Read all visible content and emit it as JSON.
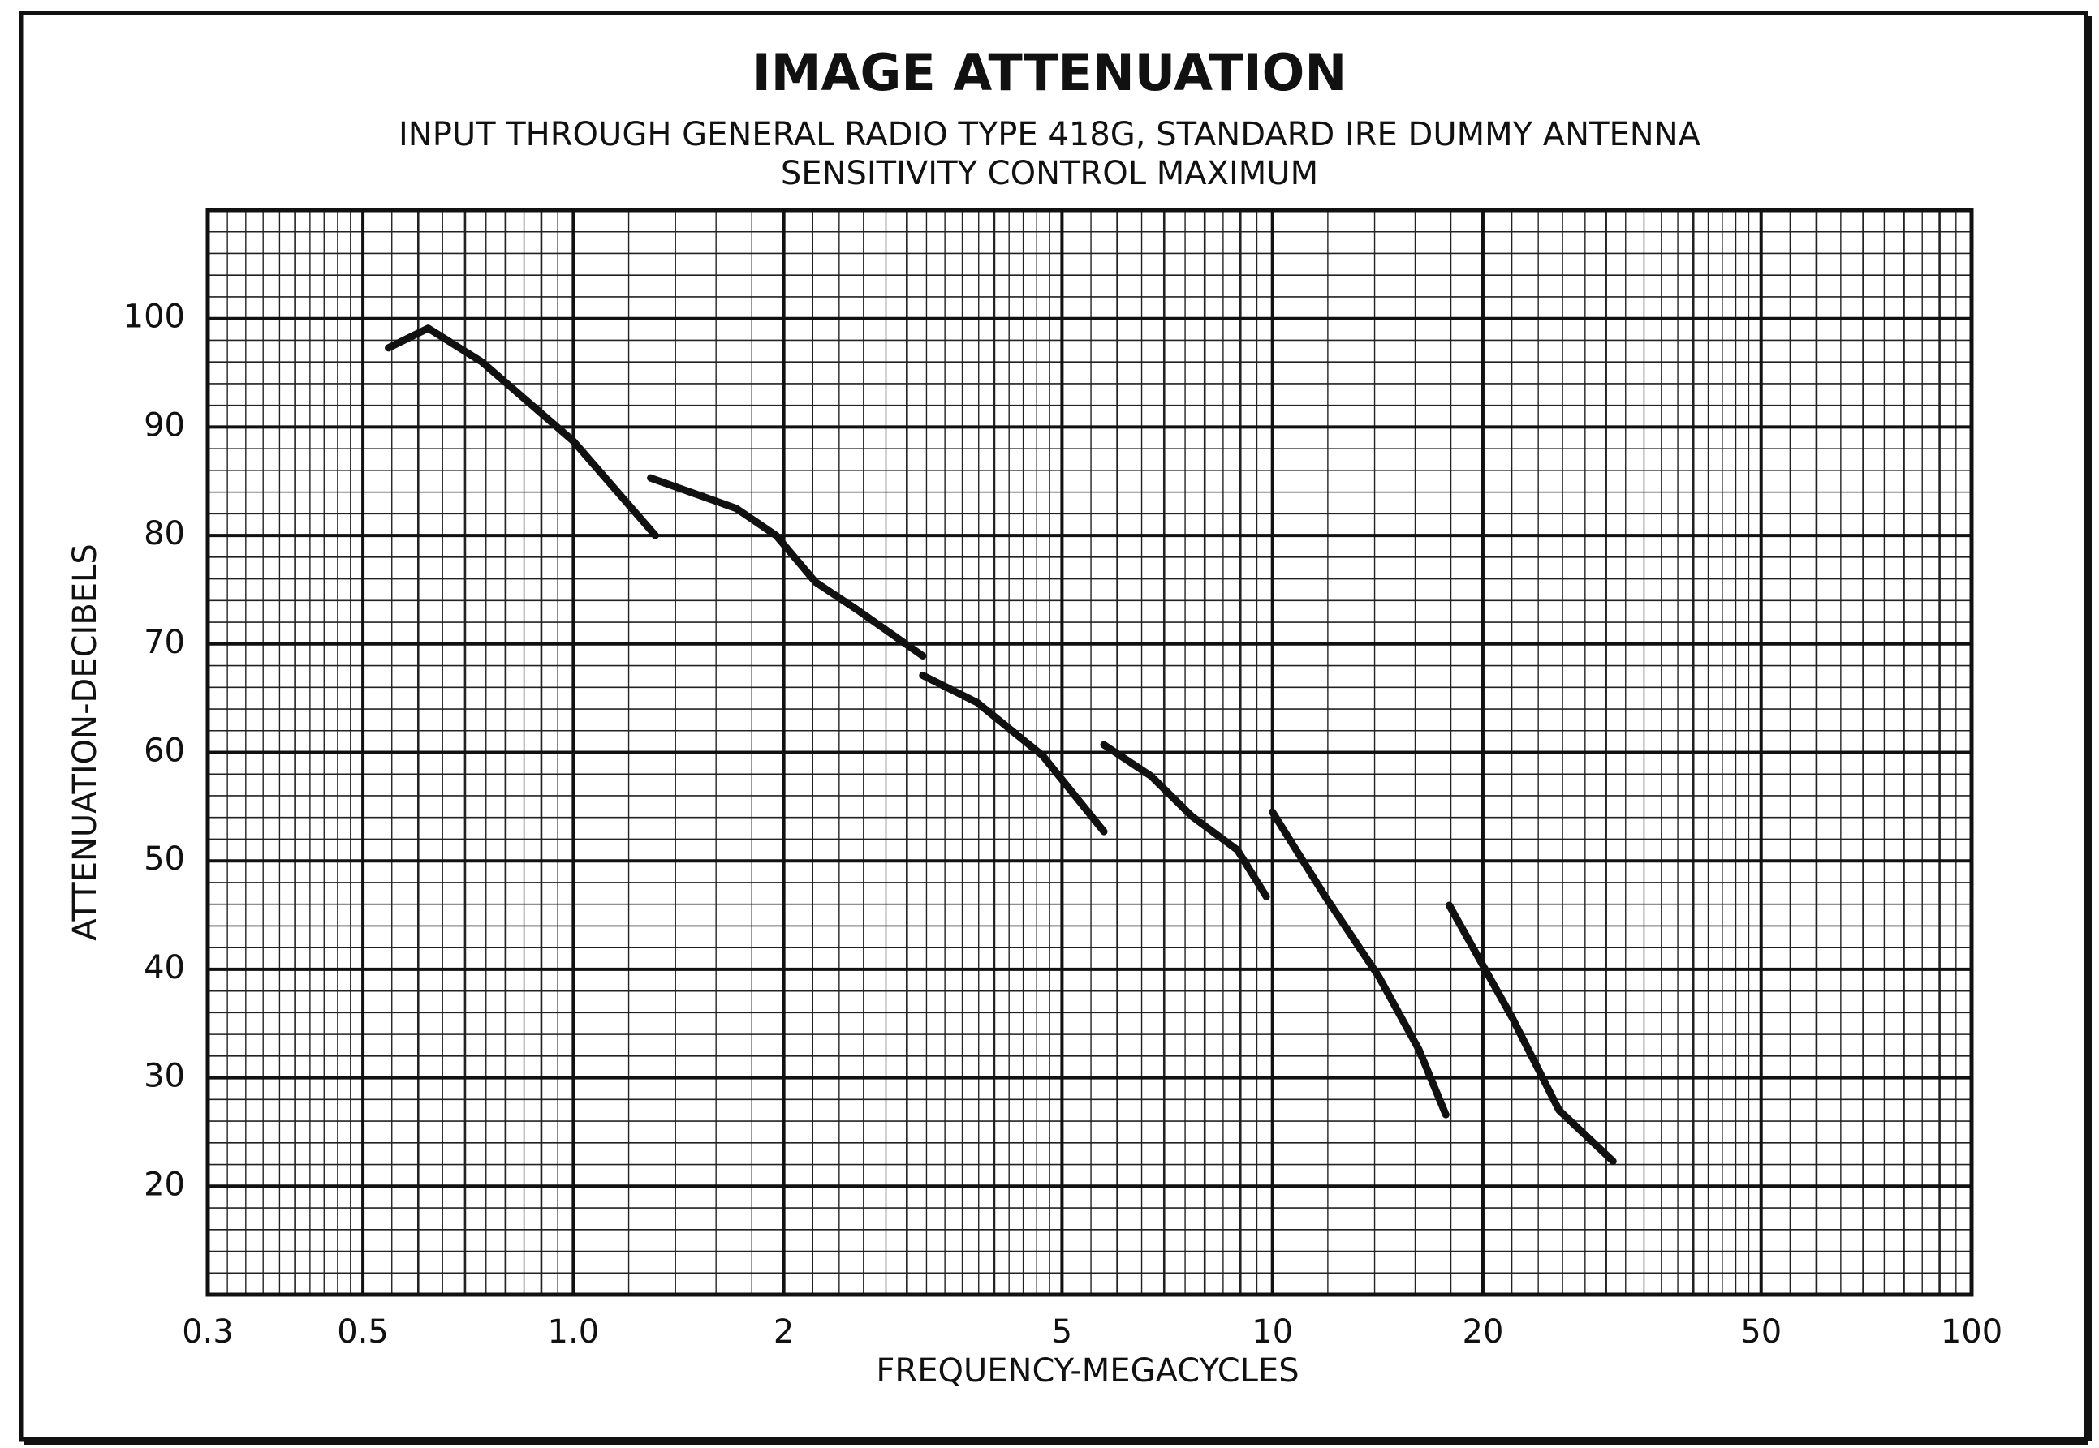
{
  "chart_data": {
    "type": "line",
    "title": "IMAGE ATTENUATION",
    "subtitle": [
      "INPUT THROUGH GENERAL RADIO TYPE 418G, STANDARD IRE DUMMY ANTENNA",
      "SENSITIVITY CONTROL MAXIMUM"
    ],
    "x_label": "FREQUENCY-MEGACYCLES",
    "y_label": "ATTENUATION-DECIBELS",
    "x_scale": "log",
    "xlim": [
      0.3,
      100
    ],
    "xticks": [
      0.3,
      0.5,
      {
        "value": 1,
        "label": "1.0"
      },
      2,
      5,
      10,
      20,
      50,
      100
    ],
    "ylim": [
      10,
      110
    ],
    "yticks": [
      20,
      30,
      40,
      50,
      60,
      70,
      80,
      90,
      100
    ],
    "grid": true,
    "minor_grid": true,
    "color": "#111111",
    "x": [
      0.544,
      0.62,
      0.74,
      1.0,
      1.31,
      null,
      1.29,
      1.71,
      1.95,
      2.22,
      2.54,
      3.16,
      null,
      3.16,
      3.78,
      4.69,
      5.74,
      null,
      5.74,
      6.71,
      7.67,
      8.91,
      9.8,
      null,
      10.0,
      11.9,
      14.2,
      16.2,
      17.7,
      null,
      17.9,
      22.0,
      25.7,
      30.7
    ],
    "values": [
      97.3,
      99.1,
      96,
      88.7,
      80,
      null,
      85.3,
      82.5,
      80,
      75.7,
      73.2,
      68.9,
      null,
      67.1,
      64.6,
      59.7,
      52.7,
      null,
      60.7,
      57.8,
      54.1,
      51,
      46.7,
      null,
      54.5,
      46.7,
      39.3,
      32.6,
      26.6,
      null,
      45.9,
      35.6,
      27,
      22.3
    ]
  }
}
